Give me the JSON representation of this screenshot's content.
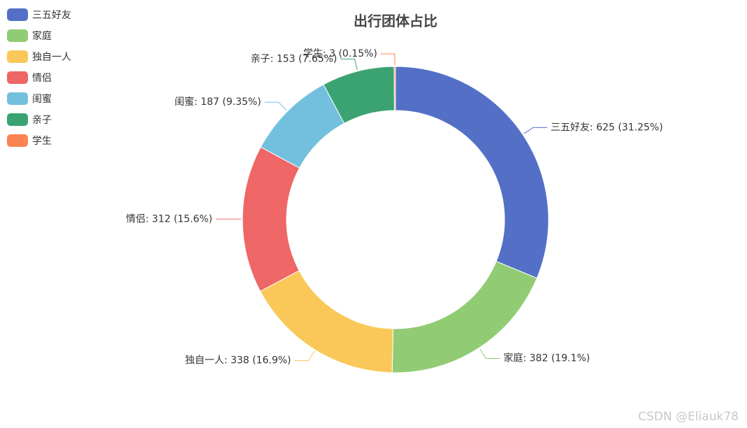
{
  "chart_data": {
    "type": "pie",
    "title": "出行团体占比",
    "legend_position": "top-left",
    "donut": true,
    "slices": [
      {
        "name": "三五好友",
        "value": 625,
        "percent": 31.25,
        "color": "#5470c6",
        "label": "三五好友: 625 (31.25%)"
      },
      {
        "name": "家庭",
        "value": 382,
        "percent": 19.1,
        "color": "#91cc75",
        "label": "家庭: 382 (19.1%)"
      },
      {
        "name": "独自一人",
        "value": 338,
        "percent": 16.9,
        "color": "#fac858",
        "label": "独自一人: 338 (16.9%)"
      },
      {
        "name": "情侣",
        "value": 312,
        "percent": 15.6,
        "color": "#ee6666",
        "label": "情侣: 312 (15.6%)"
      },
      {
        "name": "闺蜜",
        "value": 187,
        "percent": 9.35,
        "color": "#73c0de",
        "label": "闺蜜: 187 (9.35%)"
      },
      {
        "name": "亲子",
        "value": 153,
        "percent": 7.65,
        "color": "#3ba272",
        "label": "亲子: 153 (7.65%)"
      },
      {
        "name": "学生",
        "value": 3,
        "percent": 0.15,
        "color": "#fc8452",
        "label": "学生: 3 (0.15%)"
      }
    ]
  },
  "legend": {
    "items": [
      {
        "label": "三五好友",
        "color": "#5470c6"
      },
      {
        "label": "家庭",
        "color": "#91cc75"
      },
      {
        "label": "独自一人",
        "color": "#fac858"
      },
      {
        "label": "情侣",
        "color": "#ee6666"
      },
      {
        "label": "闺蜜",
        "color": "#73c0de"
      },
      {
        "label": "亲子",
        "color": "#3ba272"
      },
      {
        "label": "学生",
        "color": "#fc8452"
      }
    ]
  },
  "watermark": "CSDN @Eliauk78"
}
